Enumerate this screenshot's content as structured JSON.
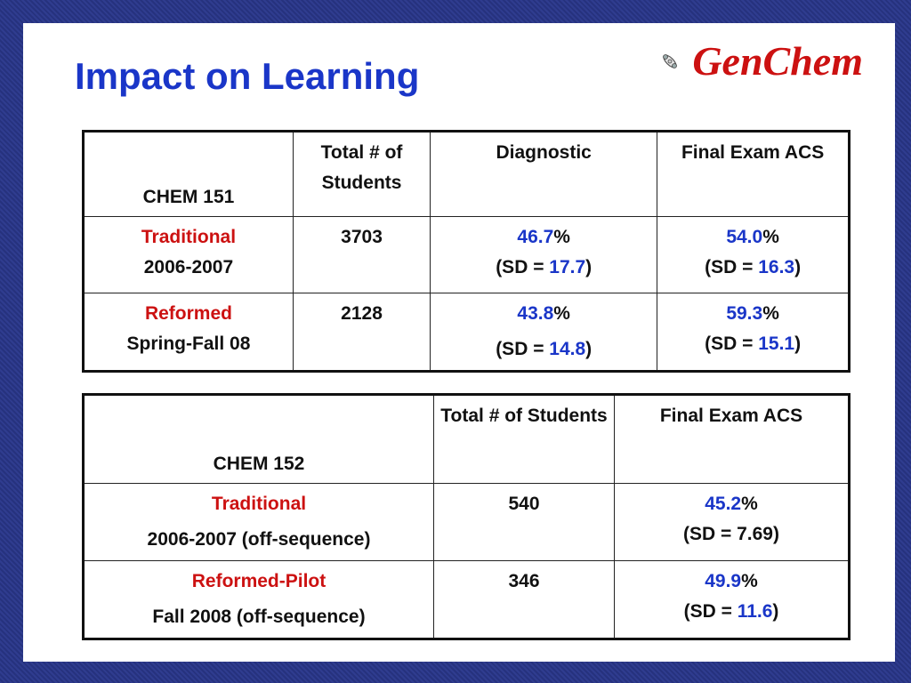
{
  "slide": {
    "title": "Impact on Learning",
    "brand": "GenChem",
    "brand_icon": "molecule-icon"
  },
  "table1": {
    "course": "CHEM 151",
    "headers": [
      "Total # of Students",
      "Diagnostic",
      "Final  Exam ACS"
    ],
    "rows": [
      {
        "group": "Traditional",
        "period": "2006-2007",
        "students": "3703",
        "diag_value": "46.7",
        "diag_sd": "17.7",
        "final_value": "54.0",
        "final_sd": "16.3"
      },
      {
        "group": "Reformed",
        "period": "Spring-Fall 08",
        "students": "2128",
        "diag_value": "43.8",
        "diag_sd": "14.8",
        "final_value": "59.3",
        "final_sd": "15.1"
      }
    ]
  },
  "table2": {
    "course": "CHEM 152",
    "headers": [
      "Total # of Students",
      "Final  Exam ACS"
    ],
    "rows": [
      {
        "group": "Traditional",
        "period": "2006-2007 (off-sequence)",
        "students": "540",
        "final_value": "45.2",
        "final_sd": "7.69"
      },
      {
        "group": "Reformed-Pilot",
        "period": "Fall 2008 (off-sequence)",
        "students": "346",
        "final_value": "49.9",
        "final_sd": "11.6"
      }
    ]
  },
  "labels": {
    "percent": "%",
    "sd_prefix": "(SD = ",
    "sd_suffix": ")"
  },
  "colors": {
    "title": "#1a36c8",
    "accent_red": "#cc1111",
    "background_frame": "#2e3a8c"
  }
}
